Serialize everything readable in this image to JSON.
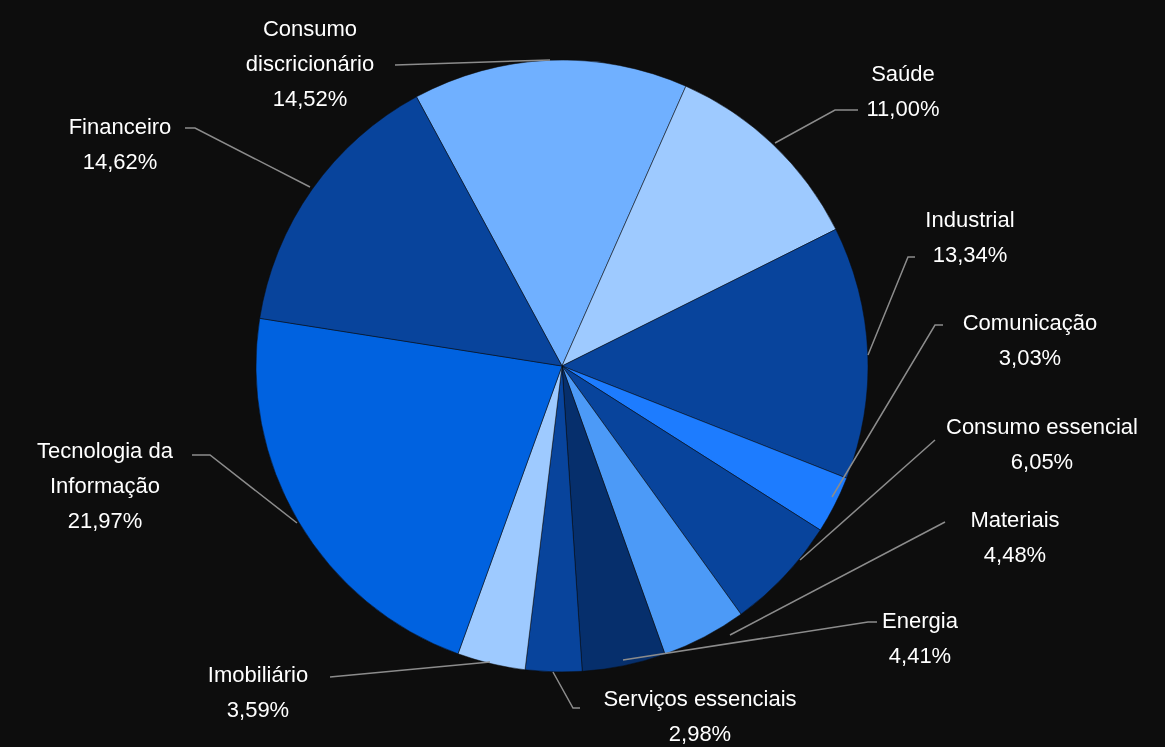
{
  "chart_data": {
    "type": "pie",
    "categories": [
      "Consumo discricionário",
      "Saúde",
      "Industrial",
      "Comunicação",
      "Consumo essencial",
      "Materiais",
      "Energia",
      "Serviços essenciais",
      "Imobiliário",
      "Tecnologia da Informação",
      "Financeiro"
    ],
    "values": [
      14.52,
      11.0,
      13.34,
      3.03,
      6.05,
      4.48,
      4.41,
      2.98,
      3.59,
      21.97,
      14.62
    ],
    "colors": [
      "#70b0ff",
      "#9ecaff",
      "#08449c",
      "#1d7cff",
      "#08449c",
      "#4c9af7",
      "#062f6c",
      "#08449c",
      "#9ecaff",
      "#0062e0",
      "#08449c"
    ],
    "value_labels": [
      "14,52%",
      "11,00%",
      "13,34%",
      "3,03%",
      "6,05%",
      "4,48%",
      "4,41%",
      "2,98%",
      "3,59%",
      "21,97%",
      "14,62%"
    ]
  }
}
